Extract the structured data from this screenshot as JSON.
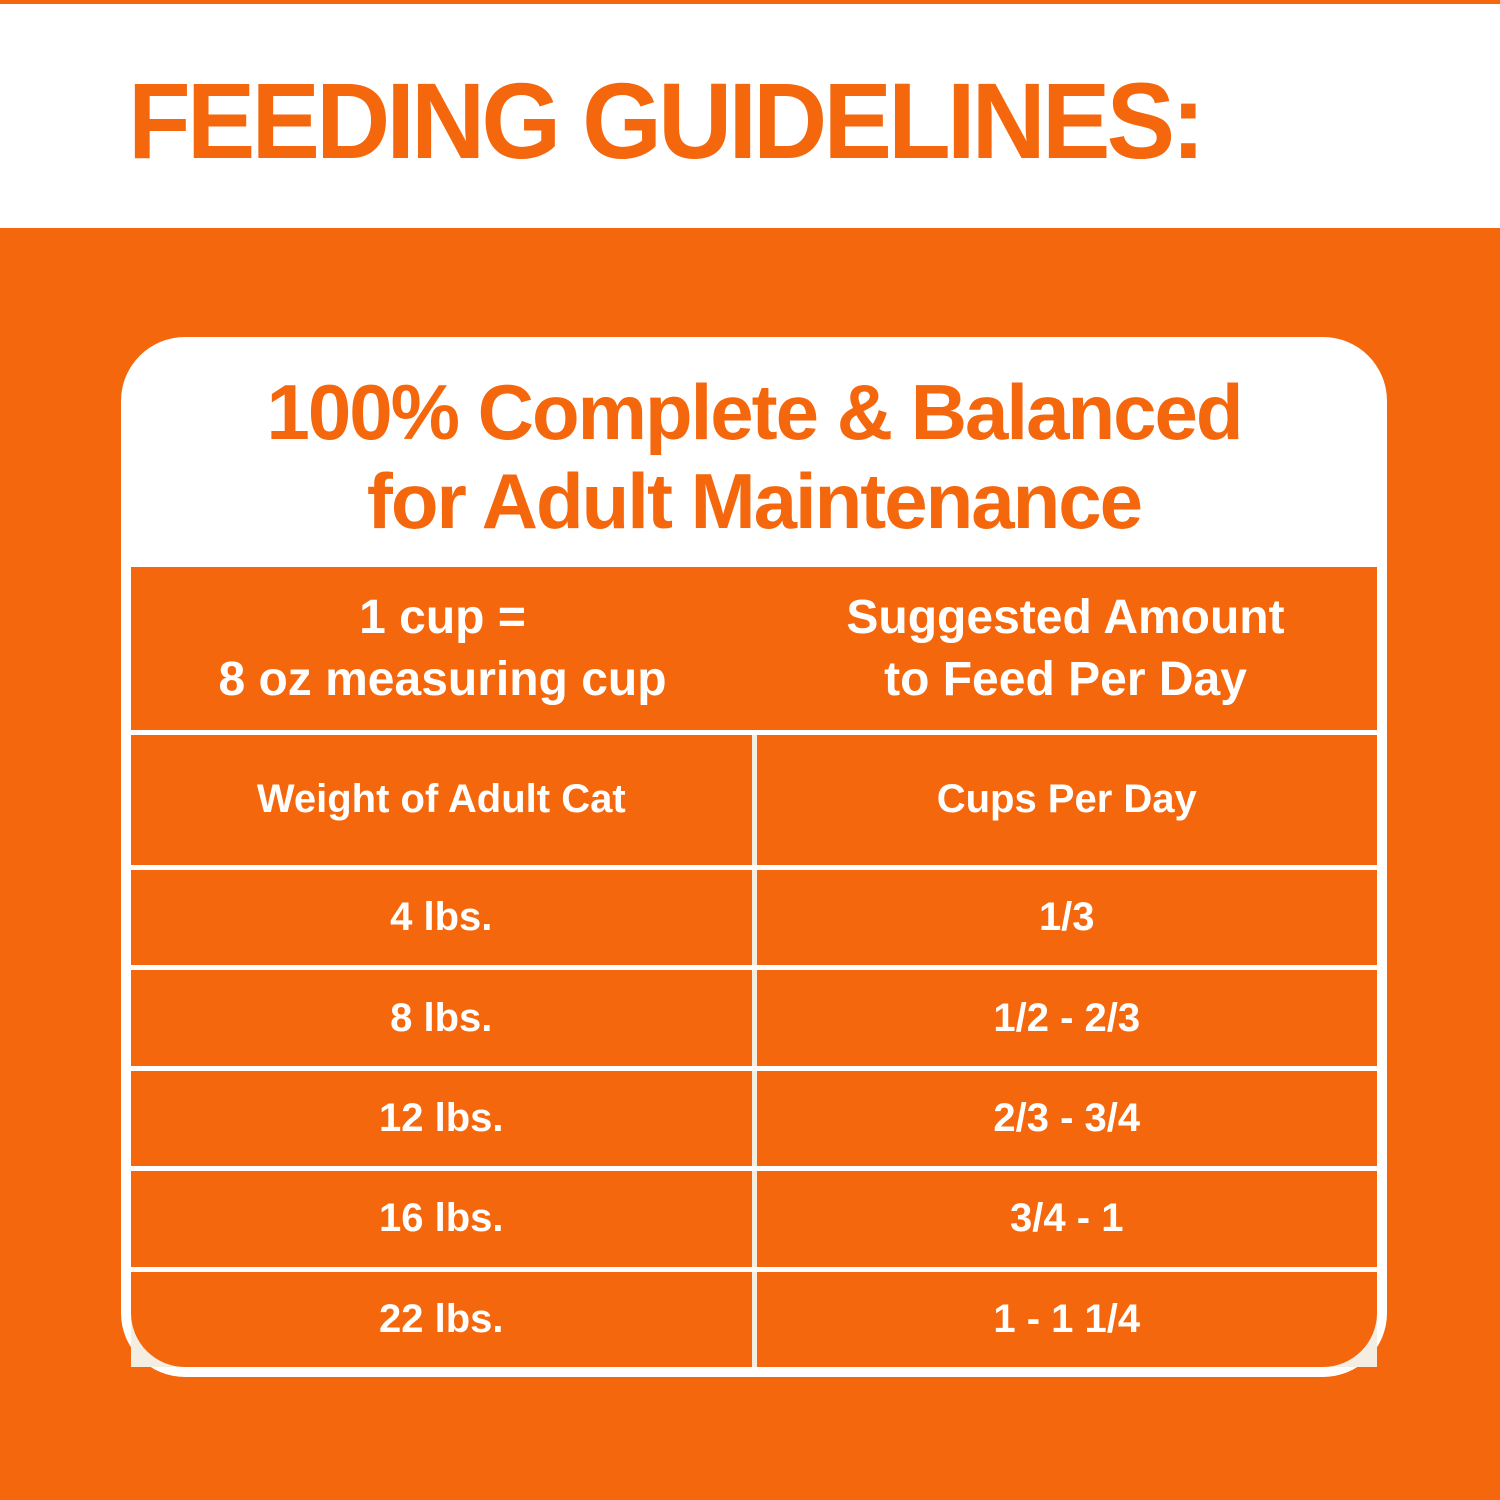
{
  "page": {
    "title": "FEEDING GUIDELINES:"
  },
  "panel": {
    "heading_line1": "100% Complete & Balanced",
    "heading_line2": "for Adult Maintenance"
  },
  "table": {
    "header": {
      "left_line1": "1 cup =",
      "left_line2": "8 oz measuring cup",
      "right_line1": "Suggested Amount",
      "right_line2": "to Feed Per Day"
    },
    "columns": {
      "left": "Weight of Adult Cat",
      "right": "Cups Per Day"
    },
    "rows": [
      {
        "weight": "4 lbs.",
        "cups": "1/3"
      },
      {
        "weight": "8 lbs.",
        "cups": "1/2 - 2/3"
      },
      {
        "weight": "12 lbs.",
        "cups": "2/3 - 3/4"
      },
      {
        "weight": "16 lbs.",
        "cups": "3/4 - 1"
      },
      {
        "weight": "22 lbs.",
        "cups": "1 - 1 1/4"
      }
    ]
  },
  "colors": {
    "orange": "#F4670D",
    "panel_white": "#FFFFFF",
    "grid_line": "#F4EEE2"
  }
}
